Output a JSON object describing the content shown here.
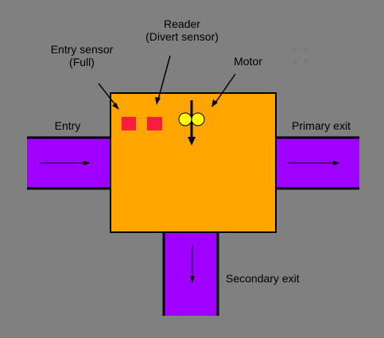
{
  "labels": {
    "reader": "Reader",
    "reader_sub": "(Divert sensor)",
    "entry_sensor": "Entry sensor",
    "entry_sensor_sub": "(Full)",
    "motor": "Motor",
    "entry": "Entry",
    "primary_exit": "Primary exit",
    "secondary_exit": "Secondary exit"
  },
  "colors": {
    "background": "#808080",
    "box": "#FFA500",
    "conveyor": "#A000FF",
    "sensor": "#FF1A40",
    "motor_roller": "#FFFF00",
    "line": "#000000"
  }
}
